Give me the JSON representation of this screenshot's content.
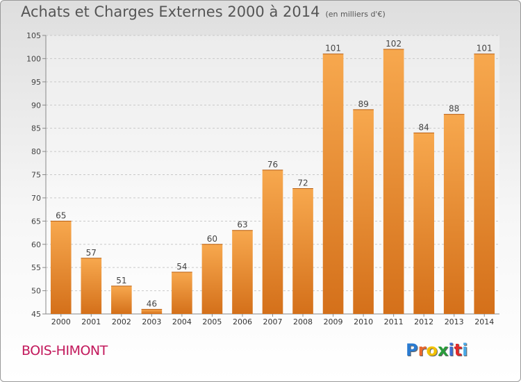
{
  "title": "Achats et Charges Externes 2000 à 2014",
  "subtitle": "(en milliers d'€)",
  "place": "BOIS-HIMONT",
  "logo": {
    "letters": [
      "P",
      "r",
      "o",
      "x",
      "i",
      "t",
      "i"
    ],
    "colors": [
      "#2a7bd1",
      "#e9682e",
      "#f2c100",
      "#2a9d3c",
      "#3d6fd3",
      "#e02a2a",
      "#49a8e6"
    ]
  },
  "colors": {
    "bar_top": "#f7a84e",
    "bar_bottom": "#d4701a",
    "place_text": "#c2185b"
  },
  "chart_data": {
    "type": "bar",
    "categories": [
      "2000",
      "2001",
      "2002",
      "2003",
      "2004",
      "2005",
      "2006",
      "2007",
      "2008",
      "2009",
      "2010",
      "2011",
      "2012",
      "2013",
      "2014"
    ],
    "values": [
      65,
      57,
      51,
      46,
      54,
      60,
      63,
      76,
      72,
      101,
      89,
      102,
      84,
      88,
      101
    ],
    "ylim": [
      45,
      105
    ],
    "yticks": [
      45,
      50,
      55,
      60,
      65,
      70,
      75,
      80,
      85,
      90,
      95,
      100,
      105
    ],
    "grid": true,
    "data_labels": true
  }
}
